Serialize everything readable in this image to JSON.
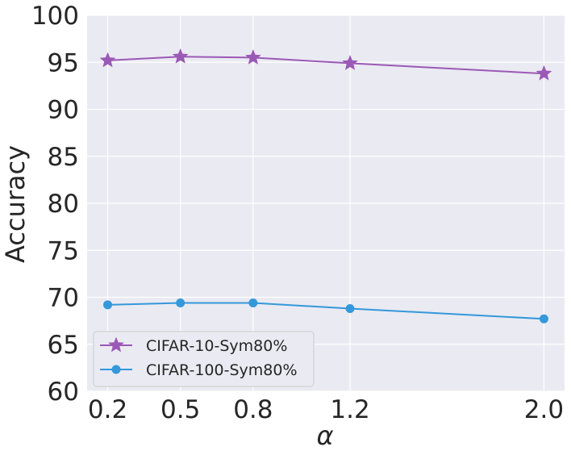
{
  "chart_data": {
    "type": "line",
    "title": "",
    "xlabel": "α",
    "ylabel": "Accuracy",
    "x": [
      0.2,
      0.5,
      0.8,
      1.2,
      2.0
    ],
    "x_tick_labels": [
      "0.2",
      "0.5",
      "0.8",
      "1.2",
      "2.0"
    ],
    "y_ticks": [
      60,
      65,
      70,
      75,
      80,
      85,
      90,
      95,
      100
    ],
    "ylim": [
      60,
      100
    ],
    "xlim": [
      0.115,
      2.085
    ],
    "grid": true,
    "legend_position": "lower-left",
    "series": [
      {
        "name": "CIFAR-10-Sym80%",
        "marker": "star",
        "color": "#9b59b6",
        "values": [
          95.2,
          95.6,
          95.5,
          94.9,
          93.8
        ]
      },
      {
        "name": "CIFAR-100-Sym80%",
        "marker": "circle",
        "color": "#3498db",
        "values": [
          69.2,
          69.4,
          69.4,
          68.8,
          67.7
        ]
      }
    ],
    "colors": {
      "plot_background": "#eaeaf2",
      "grid": "#ffffff",
      "legend_border": "#cccccc"
    }
  }
}
